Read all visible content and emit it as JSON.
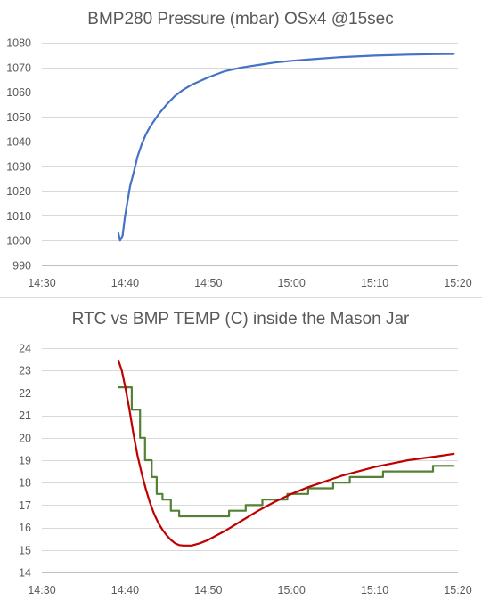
{
  "chart_data": [
    {
      "type": "line",
      "title": "BMP280 Pressure (mbar) OSx4 @15sec",
      "xlabel": "",
      "ylabel": "",
      "x_ticks": [
        "14:30",
        "14:40",
        "14:50",
        "15:00",
        "15:10",
        "15:20"
      ],
      "y_ticks": [
        "990",
        "1000",
        "1010",
        "1020",
        "1030",
        "1040",
        "1050",
        "1060",
        "1070",
        "1080"
      ],
      "xlim": [
        0,
        50
      ],
      "ylim": [
        990,
        1080
      ],
      "grid": "horizontal",
      "legend": "none",
      "series": [
        {
          "color": "#4472c4",
          "x": [
            9.2,
            9.4,
            9.7,
            10.0,
            10.3,
            10.6,
            11.0,
            11.5,
            12.0,
            12.5,
            13.0,
            14.0,
            15.0,
            16.0,
            17.0,
            18.0,
            20.0,
            22.0,
            24.0,
            26.0,
            28.0,
            30.0,
            33.0,
            36.0,
            40.0,
            44.0,
            47.0,
            49.5
          ],
          "values": [
            1003,
            1000,
            1002,
            1010,
            1016,
            1022,
            1027,
            1034,
            1039,
            1043,
            1046,
            1051,
            1055,
            1058.5,
            1061,
            1063,
            1066,
            1068.5,
            1070,
            1071,
            1072,
            1072.7,
            1073.5,
            1074.2,
            1074.8,
            1075.2,
            1075.4,
            1075.5
          ]
        }
      ]
    },
    {
      "type": "line",
      "title": "RTC vs BMP TEMP (C) inside the Mason Jar",
      "xlabel": "",
      "ylabel": "",
      "x_ticks": [
        "14:30",
        "14:40",
        "14:50",
        "15:00",
        "15:10",
        "15:20"
      ],
      "y_ticks": [
        "14",
        "15",
        "16",
        "17",
        "18",
        "19",
        "20",
        "21",
        "22",
        "23",
        "24"
      ],
      "xlim": [
        0,
        50
      ],
      "ylim": [
        14,
        24
      ],
      "grid": "horizontal",
      "legend": "none",
      "series": [
        {
          "color": "#538135",
          "x": [
            9.2,
            10.8,
            10.8,
            11.8,
            11.8,
            12.4,
            12.4,
            13.2,
            13.2,
            13.8,
            13.8,
            14.5,
            14.5,
            15.5,
            15.5,
            16.5,
            16.5,
            17.5,
            17.5,
            22.5,
            22.5,
            24.5,
            24.5,
            26.5,
            26.5,
            29.5,
            29.5,
            32.0,
            32.0,
            35.0,
            35.0,
            37.0,
            37.0,
            41.0,
            41.0,
            47.0,
            47.0,
            49.5
          ],
          "values": [
            22.25,
            22.25,
            21.25,
            21.25,
            20.0,
            20.0,
            19.0,
            19.0,
            18.25,
            18.25,
            17.5,
            17.5,
            17.25,
            17.25,
            16.75,
            16.75,
            16.5,
            16.5,
            16.5,
            16.5,
            16.75,
            16.75,
            17.0,
            17.0,
            17.25,
            17.25,
            17.5,
            17.5,
            17.75,
            17.75,
            18.0,
            18.0,
            18.25,
            18.25,
            18.5,
            18.5,
            18.75,
            18.75
          ]
        },
        {
          "color": "#c00000",
          "x": [
            9.2,
            9.6,
            10.0,
            10.5,
            11.0,
            11.5,
            12.0,
            12.5,
            13.0,
            13.5,
            14.0,
            14.5,
            15.0,
            15.5,
            16.0,
            16.5,
            17.0,
            18.0,
            19.0,
            20.0,
            21.0,
            22.0,
            24.0,
            26.0,
            28.0,
            30.0,
            32.0,
            34.0,
            36.0,
            38.0,
            40.0,
            42.0,
            44.0,
            46.0,
            48.0,
            49.5
          ],
          "values": [
            23.45,
            23.0,
            22.3,
            21.3,
            20.2,
            19.2,
            18.4,
            17.7,
            17.1,
            16.6,
            16.2,
            15.9,
            15.65,
            15.45,
            15.3,
            15.22,
            15.2,
            15.2,
            15.3,
            15.45,
            15.65,
            15.85,
            16.3,
            16.75,
            17.15,
            17.5,
            17.8,
            18.05,
            18.3,
            18.5,
            18.7,
            18.85,
            19.0,
            19.1,
            19.2,
            19.28
          ]
        }
      ]
    }
  ]
}
